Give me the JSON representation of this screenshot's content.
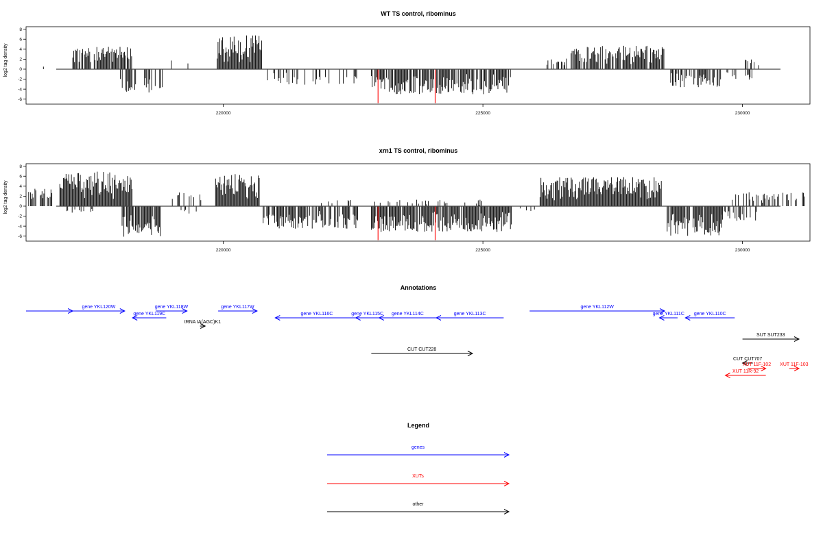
{
  "chart_data": [
    {
      "type": "bar",
      "title": "WT TS control, ribominus",
      "ylabel": "log2 tag density",
      "xlim": [
        216200,
        231300
      ],
      "ylim": [
        -7,
        8.5
      ],
      "x_ticks": [
        220000,
        225000,
        230000
      ],
      "x_tick_labels": [
        "220000",
        "225000",
        "230000"
      ],
      "y_ticks": [
        8,
        6,
        4,
        2,
        0,
        -2,
        -4,
        -6
      ],
      "y_tick_labels": [
        "8",
        "6",
        "4",
        "2",
        "0",
        "-2",
        "-4",
        "-6"
      ],
      "baseline": 0,
      "colors": {
        "bars": "#000000",
        "highlight": "#ff0000"
      },
      "regions": [
        {
          "from": 216300,
          "to": 216350,
          "sign": 1,
          "amp": 2.2,
          "density": 0.2
        },
        {
          "from": 216500,
          "to": 216540,
          "sign": 1,
          "amp": 1.0,
          "density": 0.3
        },
        {
          "from": 217100,
          "to": 218250,
          "sign": 1,
          "amp": 4.5,
          "density": 0.8
        },
        {
          "from": 218000,
          "to": 218850,
          "sign": -1,
          "amp": 4.8,
          "density": 0.55
        },
        {
          "from": 219000,
          "to": 219050,
          "sign": 1,
          "amp": 2.3,
          "density": 0.3
        },
        {
          "from": 219300,
          "to": 219350,
          "sign": 1,
          "amp": 1.8,
          "density": 0.3
        },
        {
          "from": 219650,
          "to": 219700,
          "sign": 1,
          "amp": 3.4,
          "density": 0.3
        },
        {
          "from": 219880,
          "to": 220750,
          "sign": 1,
          "amp": 6.8,
          "density": 1.0
        },
        {
          "from": 220850,
          "to": 222600,
          "sign": -1,
          "amp": 3.2,
          "density": 0.25
        },
        {
          "from": 222850,
          "to": 225550,
          "sign": -1,
          "amp": 5.0,
          "density": 0.8
        },
        {
          "from": 226200,
          "to": 226700,
          "sign": 1,
          "amp": 2.2,
          "density": 0.35
        },
        {
          "from": 226700,
          "to": 228500,
          "sign": 1,
          "amp": 4.7,
          "density": 0.8
        },
        {
          "from": 228600,
          "to": 229600,
          "sign": -1,
          "amp": 3.6,
          "density": 0.6
        },
        {
          "from": 229700,
          "to": 230300,
          "sign": -1,
          "amp": 2.2,
          "density": 0.25
        },
        {
          "from": 230000,
          "to": 230350,
          "sign": 1,
          "amp": 2.0,
          "density": 0.2
        }
      ],
      "red_bars": [
        {
          "x": 222980,
          "value": -6.8
        },
        {
          "x": 224080,
          "value": -6.8
        }
      ]
    },
    {
      "type": "bar",
      "title": "xrn1 TS control, ribominus",
      "ylabel": "log2 tag density",
      "xlim": [
        216200,
        231300
      ],
      "ylim": [
        -7,
        8.5
      ],
      "x_ticks": [
        220000,
        225000,
        230000
      ],
      "x_tick_labels": [
        "220000",
        "225000",
        "230000"
      ],
      "y_ticks": [
        8,
        6,
        4,
        2,
        0,
        -2,
        -4,
        -6
      ],
      "y_tick_labels": [
        "8",
        "6",
        "4",
        "2",
        "0",
        "-2",
        "-4",
        "-6"
      ],
      "baseline": 0,
      "colors": {
        "bars": "#000000",
        "highlight": "#ff0000"
      },
      "regions": [
        {
          "from": 216250,
          "to": 216700,
          "sign": 1,
          "amp": 3.5,
          "density": 0.5
        },
        {
          "from": 216300,
          "to": 216500,
          "sign": -1,
          "amp": 1.2,
          "density": 0.2
        },
        {
          "from": 216850,
          "to": 218250,
          "sign": 1,
          "amp": 7.0,
          "density": 1.0
        },
        {
          "from": 216950,
          "to": 217500,
          "sign": -1,
          "amp": 1.5,
          "density": 0.25
        },
        {
          "from": 218050,
          "to": 218800,
          "sign": -1,
          "amp": 6.5,
          "density": 0.85
        },
        {
          "from": 219000,
          "to": 219600,
          "sign": 1,
          "amp": 2.8,
          "density": 0.3
        },
        {
          "from": 219100,
          "to": 219500,
          "sign": -1,
          "amp": 1.5,
          "density": 0.2
        },
        {
          "from": 219850,
          "to": 220700,
          "sign": 1,
          "amp": 6.5,
          "density": 1.0
        },
        {
          "from": 220750,
          "to": 222600,
          "sign": -1,
          "amp": 4.5,
          "density": 0.7
        },
        {
          "from": 221800,
          "to": 222700,
          "sign": 1,
          "amp": 1.6,
          "density": 0.25
        },
        {
          "from": 222850,
          "to": 225550,
          "sign": -1,
          "amp": 5.2,
          "density": 0.9
        },
        {
          "from": 222900,
          "to": 225000,
          "sign": 1,
          "amp": 1.3,
          "density": 0.2
        },
        {
          "from": 225700,
          "to": 226100,
          "sign": -1,
          "amp": 1.0,
          "density": 0.15
        },
        {
          "from": 226100,
          "to": 228450,
          "sign": 1,
          "amp": 5.8,
          "density": 1.0
        },
        {
          "from": 228550,
          "to": 229600,
          "sign": -1,
          "amp": 6.0,
          "density": 0.85
        },
        {
          "from": 229600,
          "to": 230300,
          "sign": -1,
          "amp": 3.0,
          "density": 0.35
        },
        {
          "from": 229800,
          "to": 231200,
          "sign": 1,
          "amp": 2.8,
          "density": 0.35
        }
      ],
      "red_bars": [
        {
          "x": 222980,
          "value": -6.8
        },
        {
          "x": 224080,
          "value": -6.8
        }
      ]
    }
  ],
  "annotations": {
    "title": "Annotations",
    "xlim": [
      216200,
      231300
    ],
    "colors": {
      "genes": "#0000ff",
      "XUTs": "#ff0000",
      "other": "#000000"
    },
    "features": [
      {
        "label": "",
        "kind": "genes",
        "start": 216200,
        "end": 217100,
        "strand": "+",
        "row": 0
      },
      {
        "label": "gene YKL120W",
        "kind": "genes",
        "start": 217100,
        "end": 218100,
        "strand": "+",
        "row": 0
      },
      {
        "label": "gene YKL119C",
        "kind": "genes",
        "start": 218250,
        "end": 218900,
        "strand": "-",
        "row": 1
      },
      {
        "label": "gene YKL118W",
        "kind": "genes",
        "start": 218700,
        "end": 219300,
        "strand": "+",
        "row": 0
      },
      {
        "label": "tRNA tA(AGC)K1",
        "kind": "other",
        "start": 219550,
        "end": 219650,
        "strand": "+",
        "row": 2
      },
      {
        "label": "gene YKL117W",
        "kind": "genes",
        "start": 219900,
        "end": 220650,
        "strand": "+",
        "row": 0
      },
      {
        "label": "gene YKL116C",
        "kind": "genes",
        "start": 221000,
        "end": 222600,
        "strand": "-",
        "row": 1
      },
      {
        "label": "gene YKL115C",
        "kind": "genes",
        "start": 222550,
        "end": 223000,
        "strand": "-",
        "row": 1
      },
      {
        "label": "gene YKL114C",
        "kind": "genes",
        "start": 223000,
        "end": 224100,
        "strand": "-",
        "row": 1
      },
      {
        "label": "gene YKL113C",
        "kind": "genes",
        "start": 224100,
        "end": 225400,
        "strand": "-",
        "row": 1
      },
      {
        "label": "gene YKL112W",
        "kind": "genes",
        "start": 225900,
        "end": 228500,
        "strand": "+",
        "row": 0
      },
      {
        "label": "gene YKL111C",
        "kind": "genes",
        "start": 228400,
        "end": 228750,
        "strand": "-",
        "row": 1
      },
      {
        "label": "gene YKL110C",
        "kind": "genes",
        "start": 228900,
        "end": 229850,
        "strand": "-",
        "row": 1
      },
      {
        "label": "CUT CUT228",
        "kind": "other",
        "start": 222850,
        "end": 224800,
        "strand": "+",
        "row": 4
      },
      {
        "label": "SUT SUT233",
        "kind": "other",
        "start": 230000,
        "end": 231500,
        "strand": "+",
        "row": 3
      },
      {
        "label": "CUT CUT707",
        "kind": "other",
        "start": 230000,
        "end": 230200,
        "strand": "-",
        "row": 5
      },
      {
        "label": "XUT 11F-102",
        "kind": "XUTs",
        "start": 230100,
        "end": 230450,
        "strand": "+",
        "row": 6
      },
      {
        "label": "XUT 11F-103",
        "kind": "XUTs",
        "start": 230900,
        "end": 231500,
        "strand": "+",
        "row": 6
      },
      {
        "label": "XUT 11R-92",
        "kind": "XUTs",
        "start": 229670,
        "end": 230450,
        "strand": "-",
        "row": 7
      }
    ]
  },
  "legend": {
    "title": "Legend",
    "items": [
      {
        "label": "genes",
        "color": "#0000ff"
      },
      {
        "label": "XUTs",
        "color": "#ff0000"
      },
      {
        "label": "other",
        "color": "#000000"
      }
    ]
  }
}
